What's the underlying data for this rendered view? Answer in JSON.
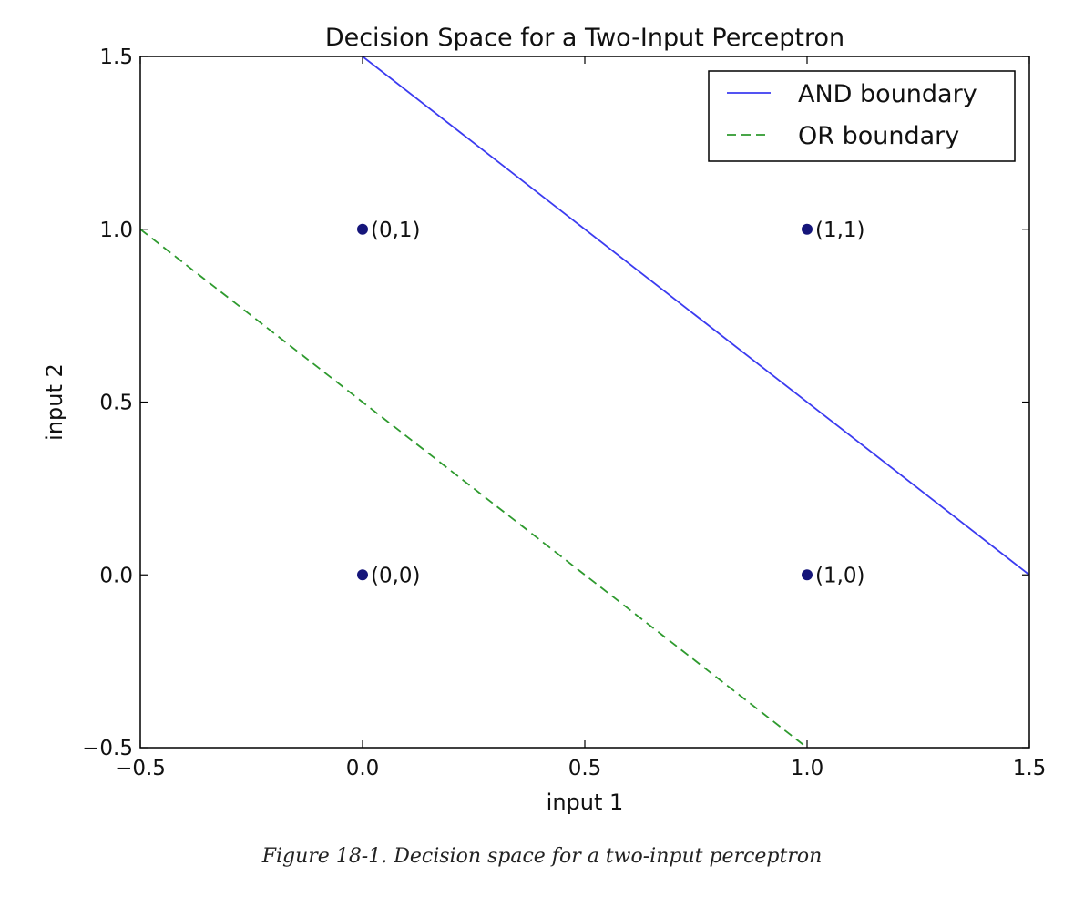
{
  "caption": "Figure 18-1. Decision space for a two-input perceptron",
  "chart_data": {
    "type": "line",
    "title": "Decision Space for a Two-Input Perceptron",
    "xlabel": "input 1",
    "ylabel": "input 2",
    "xlim": [
      -0.5,
      1.5
    ],
    "ylim": [
      -0.5,
      1.5
    ],
    "xticks": [
      -0.5,
      0.0,
      0.5,
      1.0,
      1.5
    ],
    "xtick_labels": [
      "−0.5",
      "0.0",
      "0.5",
      "1.0",
      "1.5"
    ],
    "yticks": [
      -0.5,
      0.0,
      0.5,
      1.0,
      1.5
    ],
    "ytick_labels": [
      "−0.5",
      "0.0",
      "0.5",
      "1.0",
      "1.5"
    ],
    "grid": false,
    "legend_position": "top-right",
    "series": [
      {
        "name": "AND boundary",
        "style": "solid",
        "color": "#3b3bf0",
        "x": [
          0.0,
          1.5
        ],
        "y": [
          1.5,
          0.0
        ]
      },
      {
        "name": "OR boundary",
        "style": "dashed",
        "color": "#2e9a2e",
        "x": [
          -0.5,
          1.0
        ],
        "y": [
          1.0,
          -0.5
        ]
      }
    ],
    "points": [
      {
        "x": 0,
        "y": 1,
        "label": "(0,1)"
      },
      {
        "x": 1,
        "y": 1,
        "label": "(1,1)"
      },
      {
        "x": 0,
        "y": 0,
        "label": "(0,0)"
      },
      {
        "x": 1,
        "y": 0,
        "label": "(1,0)"
      }
    ],
    "point_color": "#15157a"
  }
}
